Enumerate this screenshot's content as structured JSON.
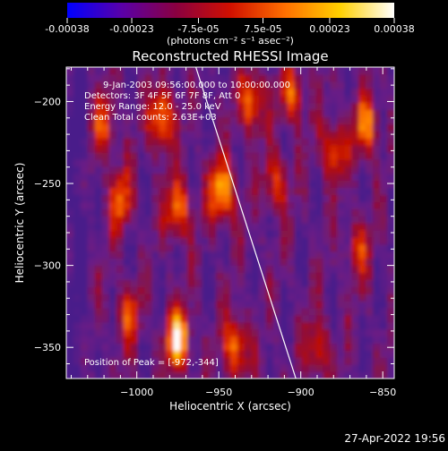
{
  "colorbar": {
    "ticks": [
      {
        "value": -0.00038,
        "label": "-0.00038"
      },
      {
        "value": -0.00023,
        "label": "-0.00023"
      },
      {
        "value": -7.5e-05,
        "label": "-7.5e-05"
      },
      {
        "value": 7.5e-05,
        "label": "7.5e-05"
      },
      {
        "value": 0.00023,
        "label": "0.00023"
      },
      {
        "value": 0.00038,
        "label": "0.00038"
      }
    ],
    "range": [
      -0.00038,
      0.00038
    ],
    "unit_label": "(photons cm⁻² s⁻¹ asec⁻²)",
    "colors": [
      "#0000ff",
      "#5a00a8",
      "#8a0040",
      "#d01000",
      "#ff7000",
      "#ffd000",
      "#ffffff"
    ]
  },
  "chart_data": {
    "type": "heatmap",
    "title": "Reconstructed RHESSI Image",
    "xlabel": "Heliocentric X (arcsec)",
    "ylabel": "Heliocentric Y (arcsec)",
    "xlim": [
      -1043,
      -843
    ],
    "ylim": [
      -369,
      -179
    ],
    "xticks": [
      {
        "value": -1000,
        "label": "−1000"
      },
      {
        "value": -950,
        "label": "−950"
      },
      {
        "value": -900,
        "label": "−900"
      },
      {
        "value": -850,
        "label": "−850"
      }
    ],
    "yticks": [
      {
        "value": -200,
        "label": "−200"
      },
      {
        "value": -250,
        "label": "−250"
      },
      {
        "value": -300,
        "label": "−300"
      },
      {
        "value": -350,
        "label": "−350"
      }
    ],
    "limb_line": [
      [
        -964,
        -179
      ],
      [
        -903,
        -369
      ]
    ],
    "bright_sources": [
      {
        "x": -975,
        "y": -345,
        "level": 1.0
      },
      {
        "x": -948,
        "y": -255,
        "level": 0.9
      },
      {
        "x": -985,
        "y": -210,
        "level": 0.8
      },
      {
        "x": -975,
        "y": -265,
        "level": 0.7
      },
      {
        "x": -930,
        "y": -200,
        "level": 0.7
      },
      {
        "x": -905,
        "y": -195,
        "level": 0.6
      },
      {
        "x": -880,
        "y": -230,
        "level": 0.6
      },
      {
        "x": -860,
        "y": -215,
        "level": 0.7
      },
      {
        "x": -1010,
        "y": -260,
        "level": 0.6
      },
      {
        "x": -940,
        "y": -350,
        "level": 0.7
      },
      {
        "x": -890,
        "y": -350,
        "level": 0.5
      },
      {
        "x": -1005,
        "y": -330,
        "level": 0.5
      },
      {
        "x": -1020,
        "y": -215,
        "level": 0.5
      },
      {
        "x": -915,
        "y": -250,
        "level": 0.55
      },
      {
        "x": -865,
        "y": -290,
        "level": 0.45
      }
    ],
    "annotations": {
      "time_range": "9-Jan-2003 09:56:00.000 to 10:00:00.000",
      "detectors": "Detectors: 3F 4F 5F 6F 7F 8F, Att 0",
      "energy_range": "Energy Range: 12.0 - 25.0 keV",
      "method_counts": "Clean     Total counts: 2.63E+03",
      "peak_position": "Position of Peak = [-972,-344]"
    }
  },
  "footer": {
    "timestamp": "27-Apr-2022 19:56"
  }
}
